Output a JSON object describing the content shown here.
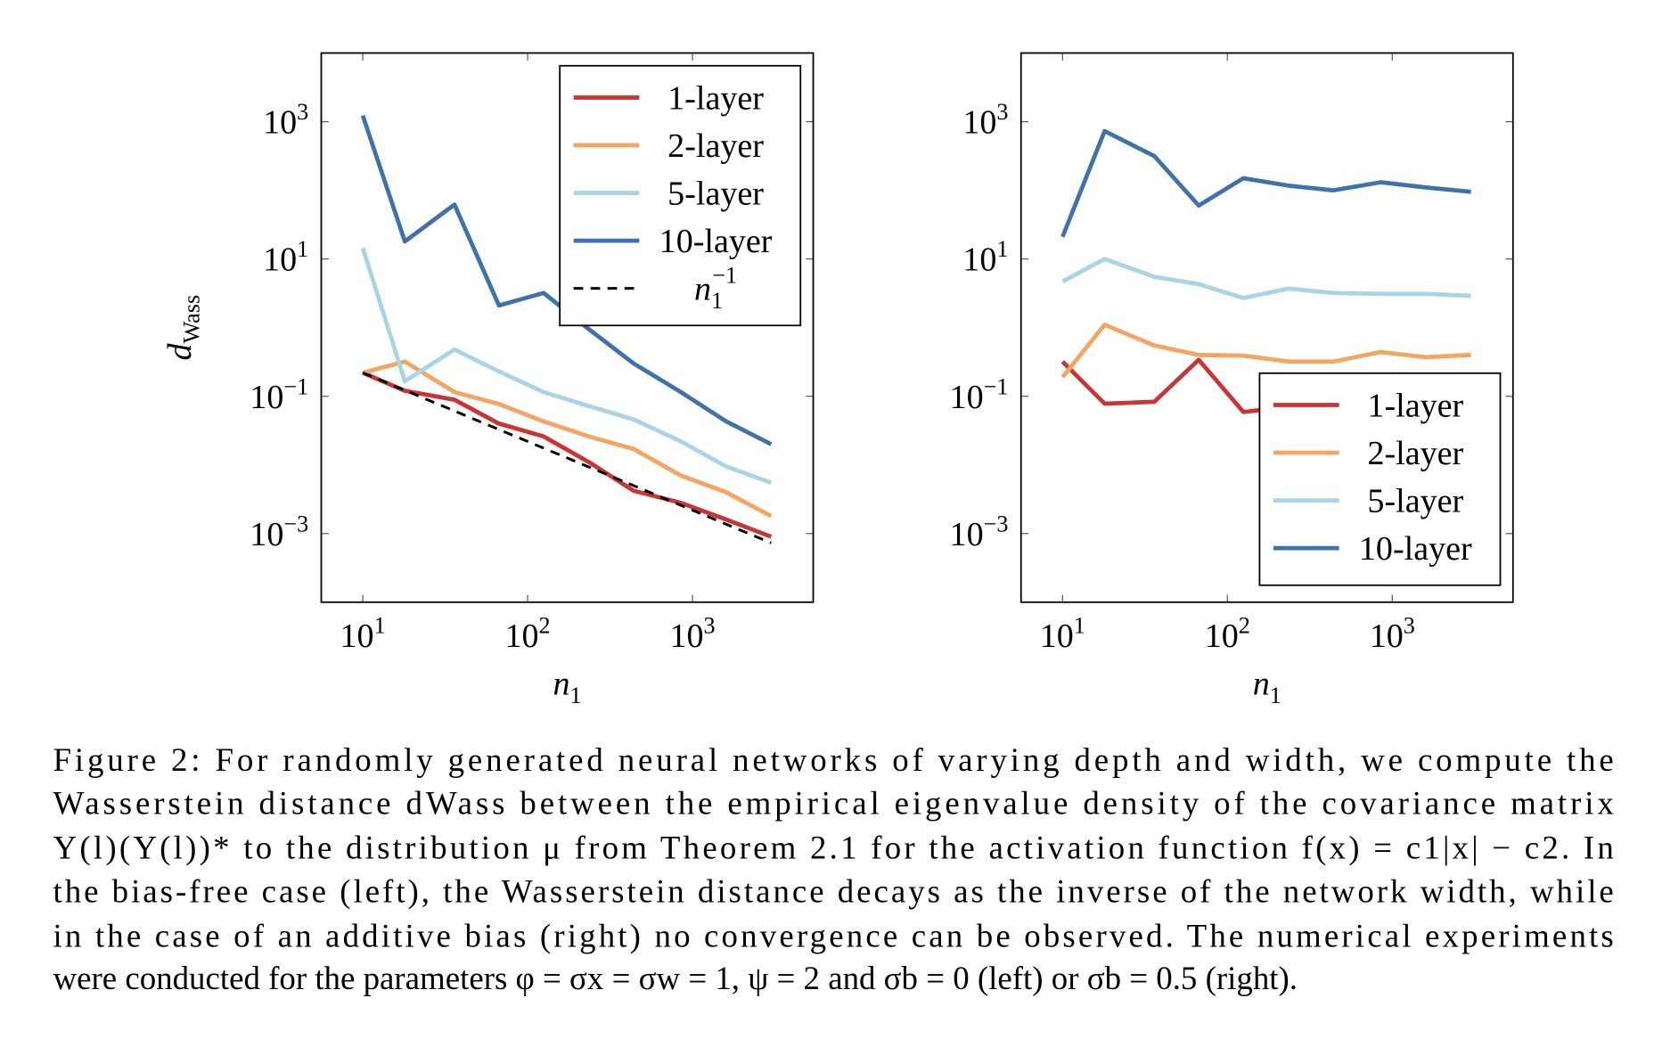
{
  "chart_data": [
    {
      "type": "line",
      "xscale": "log",
      "yscale": "log",
      "legend": "north east",
      "xlabel": "n",
      "xlabel_sub": "1",
      "ylabel": "d",
      "ylabel_sub": "Wass",
      "xlim": [
        5.6,
        5400
      ],
      "ylim": [
        0.0001,
        10000
      ],
      "xticks": [
        {
          "value": 10,
          "label": "10",
          "exponent": "1"
        },
        {
          "value": 100,
          "label": "10",
          "exponent": "2"
        },
        {
          "value": 1000,
          "label": "10",
          "exponent": "3"
        }
      ],
      "yticks": [
        {
          "value": 0.001,
          "label": "10",
          "exponent": "−3"
        },
        {
          "value": 0.1,
          "label": "10",
          "exponent": "−1"
        },
        {
          "value": 10,
          "label": "10",
          "exponent": "1"
        },
        {
          "value": 1000,
          "label": "10",
          "exponent": "3"
        }
      ],
      "x": [
        10,
        18,
        36,
        67,
        125,
        235,
        440,
        850,
        1600,
        3000
      ],
      "series": [
        {
          "name": "1-layer",
          "color": "#cc3333",
          "values": [
            0.22,
            0.12,
            0.089,
            0.04,
            0.026,
            0.011,
            0.0042,
            0.0028,
            0.0016,
            0.0009
          ]
        },
        {
          "name": "2-layer",
          "color": "#f5a560",
          "values": [
            0.22,
            0.32,
            0.115,
            0.077,
            0.043,
            0.026,
            0.017,
            0.007,
            0.004,
            0.0018
          ]
        },
        {
          "name": "5-layer",
          "color": "#a8d5e5",
          "values": [
            14.5,
            0.166,
            0.48,
            0.23,
            0.115,
            0.072,
            0.046,
            0.022,
            0.0095,
            0.0055
          ]
        },
        {
          "name": "10-layer",
          "color": "#3d72ad",
          "values": [
            1230,
            18,
            62,
            2.1,
            3.2,
            0.95,
            0.3,
            0.115,
            0.043,
            0.02
          ]
        },
        {
          "name": "n",
          "name_sub": "1",
          "name_sup": "−1",
          "color": "#000000",
          "dashed": true,
          "x": [
            10,
            3000
          ],
          "values": [
            0.22,
            0.00073
          ]
        }
      ]
    },
    {
      "type": "line",
      "xscale": "log",
      "yscale": "log",
      "legend": "south east",
      "xlabel": "n",
      "xlabel_sub": "1",
      "xlim": [
        5.6,
        5400
      ],
      "ylim": [
        0.0001,
        10000
      ],
      "xticks": [
        {
          "value": 10,
          "label": "10",
          "exponent": "1"
        },
        {
          "value": 100,
          "label": "10",
          "exponent": "2"
        },
        {
          "value": 1000,
          "label": "10",
          "exponent": "3"
        }
      ],
      "yticks": [
        {
          "value": 0.001,
          "label": "10",
          "exponent": "−3"
        },
        {
          "value": 0.1,
          "label": "10",
          "exponent": "−1"
        },
        {
          "value": 10,
          "label": "10",
          "exponent": "1"
        },
        {
          "value": 1000,
          "label": "10",
          "exponent": "3"
        }
      ],
      "x": [
        10,
        18,
        36,
        67,
        125,
        235,
        440,
        850,
        1600,
        3000
      ],
      "series": [
        {
          "name": "1-layer",
          "color": "#cc3333",
          "values": [
            0.32,
            0.078,
            0.083,
            0.34,
            0.059,
            0.07,
            0.065,
            0.06,
            0.07,
            0.065
          ]
        },
        {
          "name": "2-layer",
          "color": "#f5a560",
          "values": [
            0.19,
            1.1,
            0.55,
            0.4,
            0.39,
            0.32,
            0.32,
            0.44,
            0.37,
            0.4
          ]
        },
        {
          "name": "5-layer",
          "color": "#a8d5e5",
          "values": [
            4.7,
            10,
            5.5,
            4.3,
            2.7,
            3.7,
            3.2,
            3.1,
            3.1,
            2.9
          ]
        },
        {
          "name": "10-layer",
          "color": "#3d72ad",
          "values": [
            21,
            730,
            316,
            60,
            150,
            117,
            100,
            131,
            110,
            95
          ]
        }
      ]
    }
  ],
  "caption": [
    "Figure 2: For randomly generated neural networks of varying depth and width, we compute the",
    "Wasserstein distance dWass between the empirical eigenvalue density of the covariance matrix",
    "Y(l)(Y(l))* to the distribution μ from Theorem 2.1 for the activation function f(x) = c1|x| − c2. In",
    "the bias-free case (left), the Wasserstein distance decays as the inverse of the network width, while",
    "in the case of an additive bias (right) no convergence can be observed. The numerical experiments",
    "were conducted for the parameters φ = σx = σw = 1, ψ = 2 and σb = 0 (left) or σb = 0.5 (right)."
  ]
}
